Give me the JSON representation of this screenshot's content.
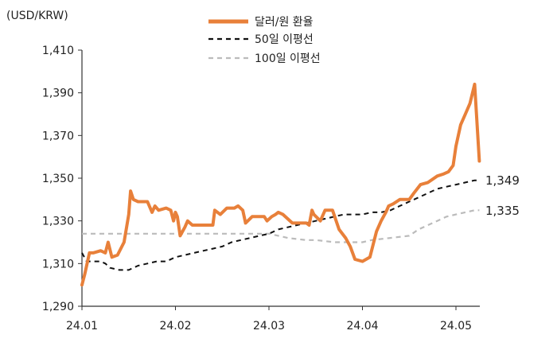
{
  "chart_data": {
    "type": "line",
    "unit_label": "(USD/KRW)",
    "ylim": [
      1290,
      1410
    ],
    "yticks": [
      1290,
      1310,
      1330,
      1350,
      1370,
      1390,
      1410
    ],
    "ytick_labels": [
      "1,290",
      "1,310",
      "1,330",
      "1,350",
      "1,370",
      "1,390",
      "1,410"
    ],
    "xlim": [
      0,
      4.25
    ],
    "xticks": [
      0,
      1,
      2,
      3,
      4
    ],
    "xtick_labels": [
      "24.01",
      "24.02",
      "24.03",
      "24.04",
      "24.05"
    ],
    "grid": false,
    "legend_position": "top-center",
    "series": [
      {
        "name": "달러/원 환율",
        "color": "#E8803A",
        "style": "solid",
        "x": [
          0,
          0.03,
          0.08,
          0.12,
          0.2,
          0.25,
          0.28,
          0.32,
          0.38,
          0.45,
          0.5,
          0.52,
          0.55,
          0.6,
          0.7,
          0.75,
          0.78,
          0.82,
          0.9,
          0.95,
          0.98,
          1.0,
          1.02,
          1.05,
          1.1,
          1.13,
          1.18,
          1.25,
          1.3,
          1.35,
          1.4,
          1.42,
          1.48,
          1.55,
          1.6,
          1.63,
          1.67,
          1.72,
          1.75,
          1.82,
          1.9,
          1.95,
          1.98,
          2.03,
          2.07,
          2.1,
          2.15,
          2.2,
          2.25,
          2.32,
          2.4,
          2.43,
          2.46,
          2.48,
          2.55,
          2.6,
          2.65,
          2.68,
          2.75,
          2.82,
          2.87,
          2.92,
          3.0,
          3.08,
          3.15,
          3.2,
          3.25,
          3.28,
          3.33,
          3.4,
          3.5,
          3.55,
          3.62,
          3.7,
          3.8,
          3.87,
          3.92,
          3.97,
          4.0,
          4.05,
          4.1,
          4.15,
          4.2,
          4.25
        ],
        "y": [
          1300,
          1305,
          1315,
          1315,
          1316,
          1315,
          1320,
          1313,
          1314,
          1320,
          1333,
          1344,
          1340,
          1339,
          1339,
          1334,
          1337,
          1335,
          1336,
          1335,
          1330,
          1334,
          1332,
          1323,
          1327,
          1330,
          1328,
          1328,
          1328,
          1328,
          1328,
          1335,
          1333,
          1336,
          1336,
          1336,
          1337,
          1335,
          1329,
          1332,
          1332,
          1332,
          1330,
          1332,
          1333,
          1334,
          1333,
          1331,
          1329,
          1329,
          1329,
          1328,
          1335,
          1333,
          1330,
          1335,
          1335,
          1335,
          1326,
          1322,
          1318,
          1312,
          1311,
          1313,
          1325,
          1330,
          1334,
          1337,
          1338,
          1340,
          1340,
          1343,
          1347,
          1348,
          1351,
          1352,
          1353,
          1356,
          1365,
          1375,
          1380,
          1385,
          1394,
          1358
        ]
      },
      {
        "name": "50일 이평선",
        "color": "#111111",
        "style": "dashed",
        "x": [
          0,
          0.05,
          0.2,
          0.25,
          0.3,
          0.4,
          0.5,
          0.6,
          0.7,
          0.8,
          0.9,
          1.0,
          1.1,
          1.2,
          1.3,
          1.4,
          1.5,
          1.6,
          1.7,
          1.8,
          1.9,
          2.0,
          2.1,
          2.2,
          2.3,
          2.4,
          2.5,
          2.6,
          2.7,
          2.8,
          2.9,
          3.0,
          3.1,
          3.2,
          3.3,
          3.4,
          3.5,
          3.6,
          3.7,
          3.8,
          3.9,
          4.0,
          4.1,
          4.2,
          4.25
        ],
        "y": [
          1315,
          1311,
          1311,
          1310,
          1308,
          1307,
          1307,
          1309,
          1310,
          1311,
          1311,
          1313,
          1314,
          1315,
          1316,
          1317,
          1318,
          1320,
          1321,
          1322,
          1323,
          1324,
          1326,
          1327,
          1328,
          1329,
          1330,
          1331,
          1332,
          1333,
          1333,
          1333,
          1334,
          1334,
          1335,
          1337,
          1339,
          1341,
          1343,
          1345,
          1346,
          1347,
          1348,
          1349,
          1349
        ]
      },
      {
        "name": "100일 이평선",
        "color": "#BBBBBB",
        "style": "dashed",
        "x": [
          0,
          0.3,
          0.6,
          0.9,
          1.2,
          1.5,
          1.8,
          2.0,
          2.1,
          2.2,
          2.4,
          2.5,
          2.7,
          2.8,
          3.0,
          3.1,
          3.3,
          3.5,
          3.6,
          3.7,
          3.8,
          3.9,
          4.0,
          4.1,
          4.2,
          4.25
        ],
        "y": [
          1324,
          1324,
          1324,
          1324,
          1324,
          1324,
          1324,
          1324,
          1323,
          1322,
          1321,
          1321,
          1320,
          1320,
          1320,
          1321,
          1322,
          1323,
          1326,
          1328,
          1330,
          1332,
          1333,
          1334,
          1335,
          1335
        ]
      }
    ],
    "end_labels": [
      "1,349",
      "1,335"
    ]
  }
}
